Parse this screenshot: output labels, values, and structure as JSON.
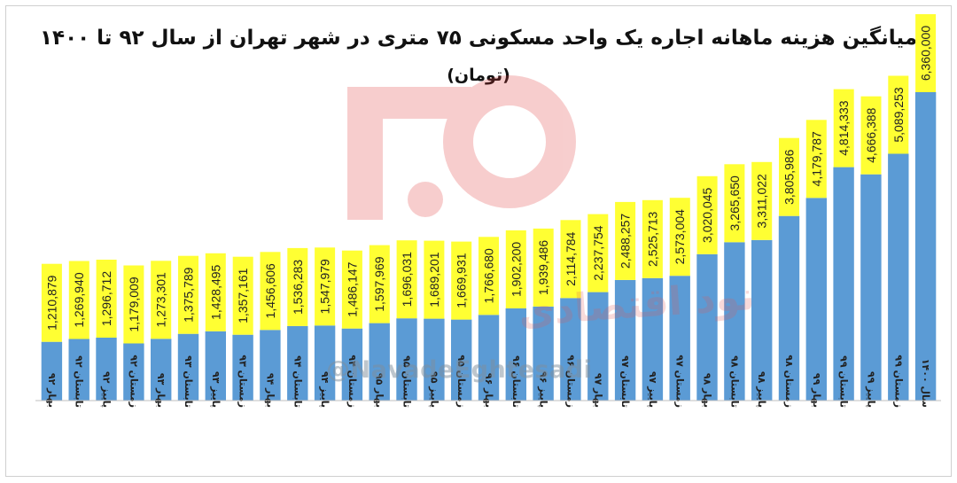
{
  "chart_data": {
    "type": "bar",
    "title": "میانگین هزینه ماهانه اجاره یک واحد مسکونی ۷۵ متری در شهر تهران از سال ۹۲ تا ۱۴۰۰",
    "subtitle": "(تومان)",
    "categories": [
      "بهار ۹۲",
      "تابستان ۹۲",
      "پاییز ۹۲",
      "زمستان ۹۲",
      "بهار ۹۳",
      "تابستان ۹۳",
      "پاییز ۹۳",
      "زمستان ۹۳",
      "بهار ۹۴",
      "تابستان ۹۴",
      "پاییز ۹۴",
      "زمستان ۹۴",
      "بهار ۹۵",
      "تابستان ۹۵",
      "پاییز ۹۵",
      "زمستان ۹۵",
      "بهار ۹۶",
      "تابستان ۹۶",
      "پاییز ۹۶",
      "زمستان ۹۶",
      "بهار ۹۷",
      "تابستان ۹۷",
      "پاییز ۹۷",
      "زمستان ۹۷",
      "بهار ۹۸",
      "تابستان ۹۸",
      "پاییز ۹۸",
      "زمستان ۹۸",
      "بهار ۹۹",
      "تابستان ۹۹",
      "پاییز ۹۹",
      "زمستان ۹۹",
      "سال ۱۴۰۰"
    ],
    "values": [
      1210879,
      1269940,
      1296712,
      1179009,
      1273301,
      1375789,
      1428495,
      1357161,
      1456606,
      1536283,
      1547979,
      1486147,
      1597969,
      1696031,
      1689201,
      1669931,
      1766680,
      1902200,
      1939486,
      2114784,
      2237754,
      2488257,
      2525713,
      2573004,
      3020045,
      3265650,
      3311022,
      3805986,
      4179787,
      4814333,
      4666388,
      5089253,
      6360000
    ],
    "ylim": [
      0,
      6360000
    ],
    "grid": false,
    "legend": "none",
    "colors": {
      "bar": "#5b9bd5",
      "label_bg": "#ffff33",
      "label_text": "#222222"
    }
  },
  "watermark": {
    "handle": "@NavadeEghtesadi",
    "brand": "نود اقتصادی"
  }
}
